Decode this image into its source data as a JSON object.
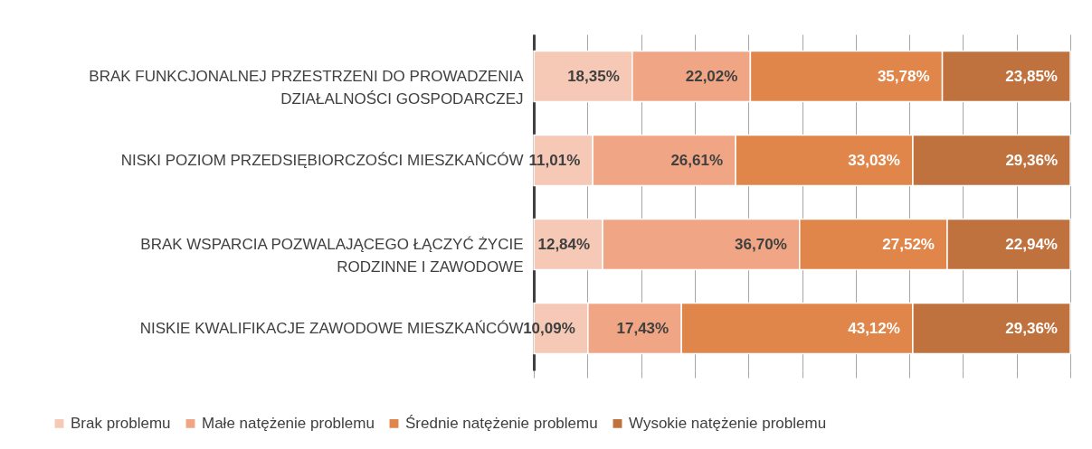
{
  "chart_data": {
    "type": "bar",
    "orientation": "horizontal",
    "stacked": true,
    "categories": [
      "BRAK FUNKCJONALNEJ PRZESTRZENI DO PROWADZENIA DZIAŁALNOŚCI GOSPODARCZEJ",
      "NISKI POZIOM PRZEDSIĘBIORCZOŚCI MIESZKAŃCÓW",
      "BRAK WSPARCIA POZWALAJĄCEGO ŁĄCZYĆ ŻYCIE RODZINNE I ZAWODOWE",
      "NISKIE KWALIFIKACJE ZAWODOWE MIESZKAŃCÓW"
    ],
    "series": [
      {
        "name": "Brak problemu",
        "color": "#f5c9b6",
        "values": [
          18.35,
          11.01,
          12.84,
          10.09
        ],
        "value_labels": [
          "18,35%",
          "11,01%",
          "12,84%",
          "10,09%"
        ]
      },
      {
        "name": "Małe natężenie problemu",
        "color": "#f0a684",
        "values": [
          22.02,
          26.61,
          36.7,
          17.43
        ],
        "value_labels": [
          "22,02%",
          "26,61%",
          "36,70%",
          "17,43%"
        ]
      },
      {
        "name": "Średnie natężenie problemu",
        "color": "#e0864a",
        "values": [
          35.78,
          33.03,
          27.52,
          43.12
        ],
        "value_labels": [
          "35,78%",
          "33,03%",
          "27,52%",
          "43,12%"
        ]
      },
      {
        "name": "Wysokie natężenie problemu",
        "color": "#bf723e",
        "values": [
          23.85,
          29.36,
          22.94,
          29.36
        ],
        "value_labels": [
          "23,85%",
          "29,36%",
          "22,94%",
          "29,36%"
        ]
      }
    ],
    "xlim": [
      0,
      100
    ],
    "xticks": [
      {
        "value": 0,
        "label": null
      },
      {
        "value": 10,
        "label": null
      },
      {
        "value": 20,
        "label": null
      },
      {
        "value": 30,
        "label": null
      },
      {
        "value": 40,
        "label": null
      },
      {
        "value": 50,
        "label": null
      },
      {
        "value": 60,
        "label": null
      },
      {
        "value": 70,
        "label": null
      },
      {
        "value": 80,
        "label": null
      },
      {
        "value": 90,
        "label": null
      },
      {
        "value": 100,
        "label": null
      }
    ],
    "tick_labels": "y",
    "grid": "x",
    "legend": "bottom"
  }
}
